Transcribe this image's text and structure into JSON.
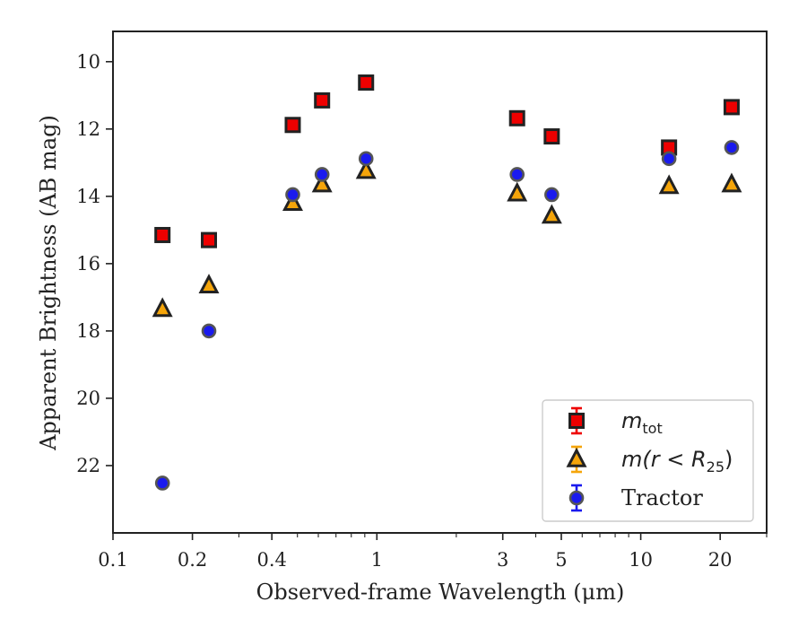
{
  "chart_data": {
    "type": "scatter",
    "xlabel": "Observed-frame Wavelength (μm)",
    "ylabel": "Apparent Brightness (AB mag)",
    "xscale": "log",
    "xlim": [
      0.1,
      30
    ],
    "ylim": [
      24,
      9.1
    ],
    "y_inverted": true,
    "x_ticks": [
      {
        "value": 0.1,
        "label": "0.1"
      },
      {
        "value": 0.2,
        "label": "0.2"
      },
      {
        "value": 0.4,
        "label": "0.4"
      },
      {
        "value": 1,
        "label": "1"
      },
      {
        "value": 3,
        "label": "3"
      },
      {
        "value": 5,
        "label": "5"
      },
      {
        "value": 10,
        "label": "10"
      },
      {
        "value": 20,
        "label": "20"
      }
    ],
    "y_ticks": [
      10,
      12,
      14,
      16,
      18,
      20,
      22
    ],
    "legend_position": "lower-right",
    "series": [
      {
        "name": "m_tot",
        "marker": "square",
        "color": "#ee0000",
        "points": [
          {
            "x": 0.154,
            "y": 15.15
          },
          {
            "x": 0.231,
            "y": 15.3
          },
          {
            "x": 0.48,
            "y": 11.88
          },
          {
            "x": 0.62,
            "y": 11.15
          },
          {
            "x": 0.91,
            "y": 10.62
          },
          {
            "x": 3.4,
            "y": 11.68
          },
          {
            "x": 4.6,
            "y": 12.22
          },
          {
            "x": 12.8,
            "y": 12.55
          },
          {
            "x": 22.1,
            "y": 11.35
          }
        ]
      },
      {
        "name": "m(r<R25)",
        "marker": "triangle",
        "color": "#f5a50a",
        "points": [
          {
            "x": 0.154,
            "y": 17.35
          },
          {
            "x": 0.231,
            "y": 16.65
          },
          {
            "x": 0.48,
            "y": 14.2
          },
          {
            "x": 0.62,
            "y": 13.65
          },
          {
            "x": 0.91,
            "y": 13.25
          },
          {
            "x": 3.4,
            "y": 13.92
          },
          {
            "x": 4.6,
            "y": 14.58
          },
          {
            "x": 12.8,
            "y": 13.7
          },
          {
            "x": 22.1,
            "y": 13.65
          }
        ]
      },
      {
        "name": "Tractor",
        "marker": "circle",
        "color": "#1a1aee",
        "points": [
          {
            "x": 0.154,
            "y": 22.52
          },
          {
            "x": 0.231,
            "y": 18.0
          },
          {
            "x": 0.48,
            "y": 13.95
          },
          {
            "x": 0.62,
            "y": 13.35
          },
          {
            "x": 0.91,
            "y": 12.88
          },
          {
            "x": 3.4,
            "y": 13.35
          },
          {
            "x": 4.6,
            "y": 13.95
          },
          {
            "x": 12.8,
            "y": 12.88
          },
          {
            "x": 22.1,
            "y": 12.55
          }
        ]
      }
    ],
    "legend": [
      {
        "main": "m",
        "sub": "tot",
        "suffix": "",
        "marker": "square"
      },
      {
        "main": "m(r < R",
        "sub": "25",
        "suffix": ")",
        "marker": "triangle"
      },
      {
        "main": "Tractor",
        "sub": "",
        "suffix": "",
        "marker": "circle"
      }
    ]
  }
}
